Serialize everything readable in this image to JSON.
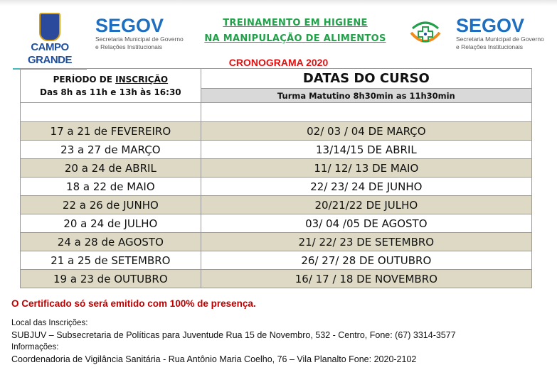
{
  "header": {
    "prefeitura_logo": "CAMPO GRANDE",
    "segov_logo": {
      "name": "SEGOV",
      "line1": "Secretaria Municipal de Governo",
      "line2": "e Relações Institucionais"
    },
    "title_line1": "TREINAMENTO  EM  HIGIENE",
    "title_line2": "NA MANIPULAÇÃO DE ALIMENTOS",
    "visa_logo": "VIGILÂNCIA SANITÁRIA",
    "cronograma": "CRONOGRAMA 2020"
  },
  "table": {
    "left_header_prefix": "PERÍODO DE ",
    "left_header_emph": "INSCRIÇÃO",
    "left_header_hours": "Das 8h as 11h e 13h às 16:30",
    "right_header": "DATAS DO CURSO",
    "right_subheader": "Turma Matutino 8h30min as 11h30min",
    "rows": [
      {
        "inscricao": "17 a 21 de FEVEREIRO",
        "curso": "02/ 03 / 04 DE MARÇO"
      },
      {
        "inscricao": "23 a 27 de MARÇO",
        "curso": "13/14/15 DE ABRIL"
      },
      {
        "inscricao": "20 a 24 de ABRIL",
        "curso": "11/ 12/ 13 DE MAIO"
      },
      {
        "inscricao": "18 a 22 de MAIO",
        "curso": "22/ 23/ 24 DE JUNHO"
      },
      {
        "inscricao": "22 a 26 de JUNHO",
        "curso": "20/21/22 DE JULHO"
      },
      {
        "inscricao": "20 a 24 de JULHO",
        "curso": "03/ 04 /05 DE AGOSTO"
      },
      {
        "inscricao": "24 a 28 de AGOSTO",
        "curso": "21/ 22/ 23 DE SETEMBRO"
      },
      {
        "inscricao": "21 a 25 de SETEMBRO",
        "curso": "26/ 27/ 28 DE OUTUBRO"
      },
      {
        "inscricao": "19 a 23 de OUTUBRO",
        "curso": "16/ 17 / 18 DE NOVEMBRO"
      }
    ]
  },
  "footer": {
    "certificate": "O Certificado só será emitido com 100% de presença.",
    "local_label": "Local das Inscrições:",
    "local_value": "SUBJUV – Subsecretaria de Políticas para Juventude Rua 15 de Novembro, 532 - Centro, Fone: (67) 3314-3577",
    "info_label": "Informações:",
    "info_value": "Coordenadoria de Vigilância Sanitária -  Rua Antônio Maria Coelho, 76 – Vila Planalto Fone: 2020-2102"
  },
  "colors": {
    "segov_blue": "#1f6fc0",
    "title_green": "#22a04a",
    "cronograma_red": "#e01010",
    "row_beige": "#ddd9c4",
    "certificate_red": "#c00000"
  }
}
